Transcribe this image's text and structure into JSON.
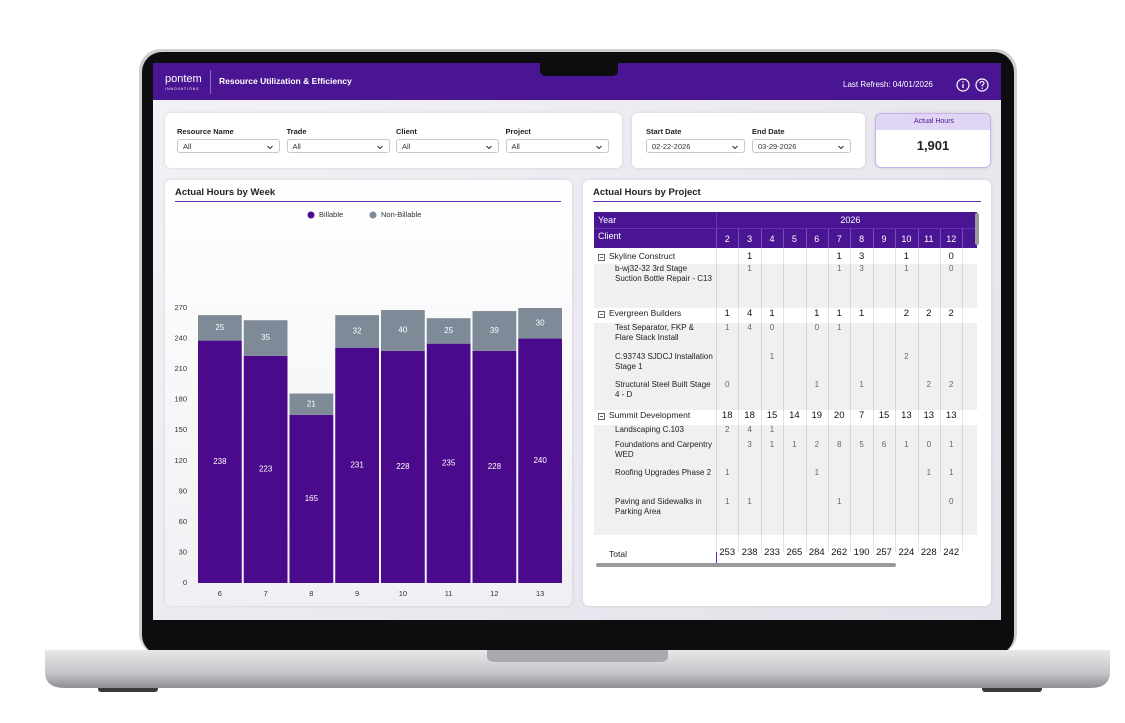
{
  "header": {
    "logo": "pontem",
    "logo_sub": "INNOVATIONS",
    "title": "Resource Utilization & Efficiency",
    "last_refresh": "Last Refresh: 04/01/2026"
  },
  "filters": [
    {
      "label": "Resource Name",
      "value": "All"
    },
    {
      "label": "Trade",
      "value": "All"
    },
    {
      "label": "Client",
      "value": "All"
    },
    {
      "label": "Project",
      "value": "All"
    }
  ],
  "dates": [
    {
      "label": "Start Date",
      "value": "02-22-2026"
    },
    {
      "label": "End Date",
      "value": "03-29-2026"
    }
  ],
  "kpi": {
    "label": "Actual Hours",
    "value": "1,901"
  },
  "weekly_chart": {
    "type": "bar",
    "stacked": true,
    "title": "Actual Hours by Week",
    "categories": [
      "6",
      "7",
      "8",
      "9",
      "10",
      "11",
      "12",
      "13"
    ],
    "series": [
      {
        "name": "Billable",
        "color": "#4b0a8c",
        "values": [
          238,
          223,
          165,
          231,
          228,
          235,
          228,
          240
        ]
      },
      {
        "name": "Non-Billable",
        "color": "#7e8a97",
        "values": [
          25,
          35,
          21,
          32,
          40,
          25,
          39,
          30
        ]
      }
    ],
    "ylim": [
      0,
      270
    ],
    "yticks": [
      0,
      30,
      60,
      90,
      120,
      150,
      180,
      210,
      240,
      270
    ]
  },
  "project_matrix": {
    "title": "Actual Hours by Project",
    "row_header": "Year",
    "year": "2026",
    "column_header": "Client",
    "columns": [
      "2",
      "3",
      "4",
      "5",
      "6",
      "7",
      "8",
      "9",
      "10",
      "11",
      "12"
    ],
    "groups": [
      {
        "client": "Skyline Construct",
        "values": [
          null,
          1,
          null,
          null,
          null,
          1,
          3,
          null,
          1,
          null,
          0
        ],
        "projects": [
          {
            "name": "b-wj32-32 3rd Stage Suction Bottle Repair - C13",
            "values": [
              null,
              1,
              null,
              null,
              null,
              1,
              3,
              null,
              1,
              null,
              0
            ]
          }
        ]
      },
      {
        "client": "Evergreen Builders",
        "values": [
          1,
          4,
          1,
          null,
          1,
          1,
          1,
          null,
          2,
          2,
          2
        ],
        "projects": [
          {
            "name": "Test Separator, FKP & Flare Stack Install",
            "values": [
              1,
              4,
              0,
              null,
              0,
              1,
              null,
              null,
              null,
              null,
              null
            ]
          },
          {
            "name": "C.93743 SJDCJ Installation Stage 1",
            "values": [
              null,
              null,
              1,
              null,
              null,
              null,
              null,
              null,
              2,
              null,
              null
            ]
          },
          {
            "name": "Structural Steel Built Stage 4 - D",
            "values": [
              0,
              null,
              null,
              null,
              1,
              null,
              1,
              null,
              null,
              2,
              2
            ]
          }
        ]
      },
      {
        "client": "Summit Development",
        "values": [
          18,
          18,
          15,
          14,
          19,
          20,
          7,
          15,
          13,
          13,
          13
        ],
        "projects": [
          {
            "name": "Landscaping C.103",
            "values": [
              2,
              4,
              1,
              null,
              null,
              null,
              null,
              null,
              null,
              null,
              null
            ]
          },
          {
            "name": "Foundations and Carpentry WED",
            "values": [
              null,
              3,
              1,
              1,
              2,
              8,
              5,
              6,
              1,
              0,
              1
            ]
          },
          {
            "name": "Roofing Upgrades Phase 2",
            "values": [
              1,
              null,
              null,
              null,
              1,
              null,
              null,
              null,
              null,
              1,
              1
            ]
          },
          {
            "name": "Paving and Sidewalks in Parking Area",
            "values": [
              1,
              1,
              null,
              null,
              null,
              1,
              null,
              null,
              null,
              null,
              0
            ]
          }
        ]
      }
    ],
    "total_label": "Total",
    "totals": [
      253,
      238,
      233,
      265,
      284,
      262,
      190,
      257,
      224,
      228,
      242
    ]
  }
}
